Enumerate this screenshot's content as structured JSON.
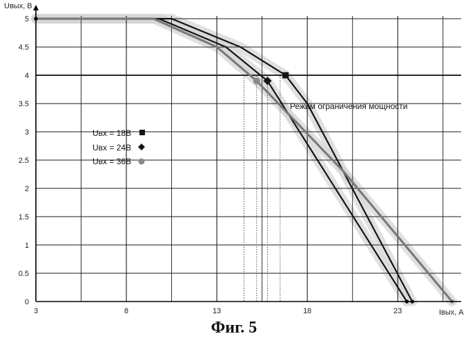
{
  "caption": "Фиг. 5",
  "chart_data": {
    "type": "line",
    "xlabel": "Iвых, А",
    "ylabel": "Uвых, В",
    "xlim": [
      3,
      26.5
    ],
    "ylim": [
      0,
      5.05
    ],
    "x_ticks": [
      3,
      8,
      13,
      18,
      23
    ],
    "y_ticks": [
      0,
      0.5,
      1,
      1.5,
      2,
      2.5,
      3,
      3.5,
      4,
      4.5,
      5
    ],
    "grid": true,
    "annotation": "Режим ограничения мощности",
    "threshold_line_y": 4,
    "colors": {
      "grid": "#1a1a1a",
      "dark_line": "#141414",
      "gray_line": "#7a7a7a",
      "halo": "#d6d6d6",
      "guide": "#3a3a3a"
    },
    "series": [
      {
        "name": "Uвх = 18В",
        "marker": "square",
        "color": "#141414",
        "x": [
          3,
          10.5,
          14.3,
          16.8,
          18,
          23.8
        ],
        "y": [
          5,
          5,
          4.5,
          4,
          3.5,
          0
        ],
        "marker_point": [
          16.8,
          4
        ]
      },
      {
        "name": "Uвх = 24В",
        "marker": "diamond",
        "color": "#141414",
        "x": [
          3,
          9.8,
          13.5,
          15.8,
          23.5
        ],
        "y": [
          5,
          5,
          4.5,
          3.9,
          0
        ],
        "marker_point": [
          15.8,
          3.9
        ]
      },
      {
        "name": "Uвх = 36В",
        "marker": "circle",
        "color": "#7a7a7a",
        "x": [
          3,
          9.5,
          13,
          15.2,
          20,
          26
        ],
        "y": [
          5,
          5,
          4.5,
          3.9,
          2.3,
          0
        ],
        "marker_point": [
          15.2,
          3.9
        ]
      }
    ],
    "guide_lines_x": [
      14.5,
      15.2,
      15.8,
      16.5
    ]
  }
}
